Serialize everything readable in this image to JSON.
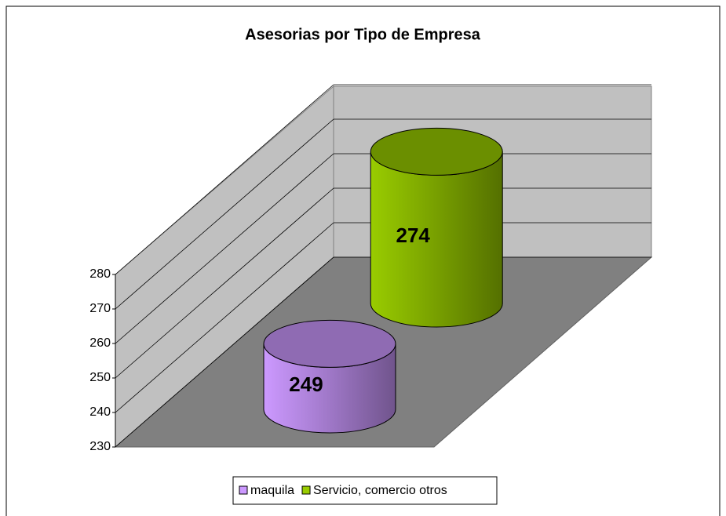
{
  "chart_data": {
    "type": "bar3d-cylinder",
    "title": "Asesorias por Tipo de Empresa",
    "series": [
      {
        "name": "maquila",
        "color": "#cc99ff",
        "values": [
          249
        ]
      },
      {
        "name": "Servicio, comercio otros",
        "color": "#99cc00",
        "values": [
          274
        ]
      }
    ],
    "ylim": [
      230,
      280
    ],
    "yticks": [
      230,
      240,
      250,
      260,
      270,
      280
    ],
    "grid": true,
    "legend": "bottom"
  }
}
